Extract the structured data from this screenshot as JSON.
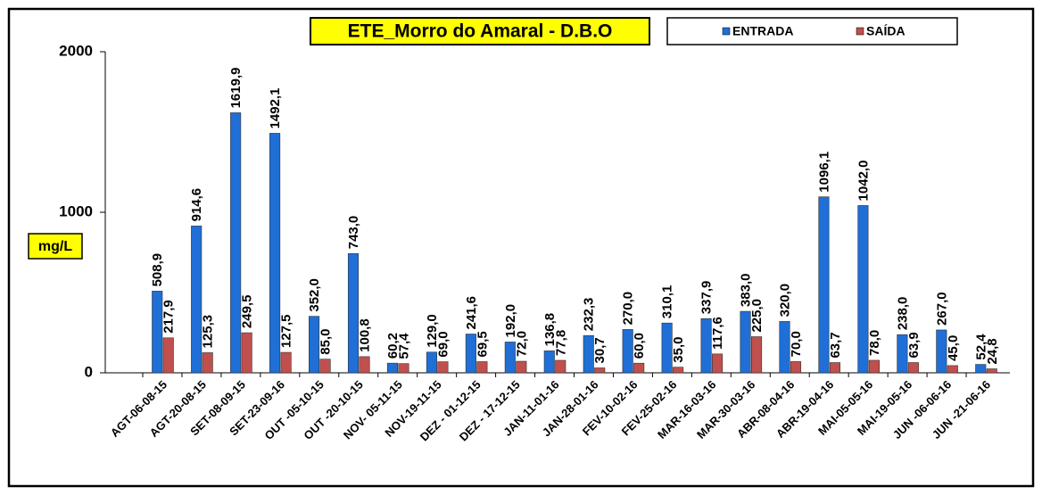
{
  "chart_data": {
    "type": "bar",
    "title": "ETE_Morro do Amaral - D.B.O",
    "y_label": "mg/L",
    "categories": [
      "AGT-06-08-15",
      "AGT-20-08-15",
      "SET-08-09-15",
      "SET-23-09-16",
      "OUT -05-10-15",
      "OUT -20-10-15",
      "NOV- 05-11-15",
      "NOV-19-11-15",
      "DEZ - 01-12-15",
      "DEZ - 17-12-15",
      "JAN-11-01-16",
      "JAN-28-01-16",
      "FEV-10-02-16",
      "FEV-25-02-16",
      "MAR-16-03-16",
      "MAR-30-03-16",
      "ABR-08-04-16",
      "ABR-19-04-16",
      "MAI-05-05-16",
      "MAI-19-05-16",
      "JUN -06-06-16",
      "JUN -21-06-16"
    ],
    "series": [
      {
        "name": "ENTRADA",
        "color": "#1f6fd6",
        "values": [
          508.9,
          914.6,
          1619.9,
          1492.1,
          352.0,
          743.0,
          60.2,
          129.0,
          241.6,
          192.0,
          136.8,
          232.3,
          270.0,
          310.1,
          337.9,
          383.0,
          320.0,
          1096.1,
          1042.0,
          238.0,
          267.0,
          52.4
        ],
        "value_labels": [
          "508,9",
          "914,6",
          "1619,9",
          "1492,1",
          "352,0",
          "743,0",
          "60,2",
          "129,0",
          "241,6",
          "192,0",
          "136,8",
          "232,3",
          "270,0",
          "310,1",
          "337,9",
          "383,0",
          "320,0",
          "1096,1",
          "1042,0",
          "238,0",
          "267,0",
          "52,4"
        ]
      },
      {
        "name": "SAÍDA",
        "color": "#c0504d",
        "values": [
          217.9,
          125.3,
          249.5,
          127.5,
          85.0,
          100.8,
          57.4,
          69.0,
          69.5,
          72.0,
          77.8,
          30.7,
          60.0,
          35.0,
          117.6,
          225.0,
          70.0,
          63.7,
          78.0,
          63.9,
          45.0,
          24.8
        ],
        "value_labels": [
          "217,9",
          "125,3",
          "249,5",
          "127,5",
          "85,0",
          "100,8",
          "57,4",
          "69,0",
          "69,5",
          "72,0",
          "77,8",
          "30,7",
          "60,0",
          "35,0",
          "117,6",
          "225,0",
          "70,0",
          "63,7",
          "78,0",
          "63,9",
          "45,0",
          "24,8"
        ]
      }
    ],
    "ylim": [
      0,
      2000
    ],
    "yticks": [
      0,
      1000,
      2000
    ],
    "grid": false,
    "legend": "top"
  }
}
